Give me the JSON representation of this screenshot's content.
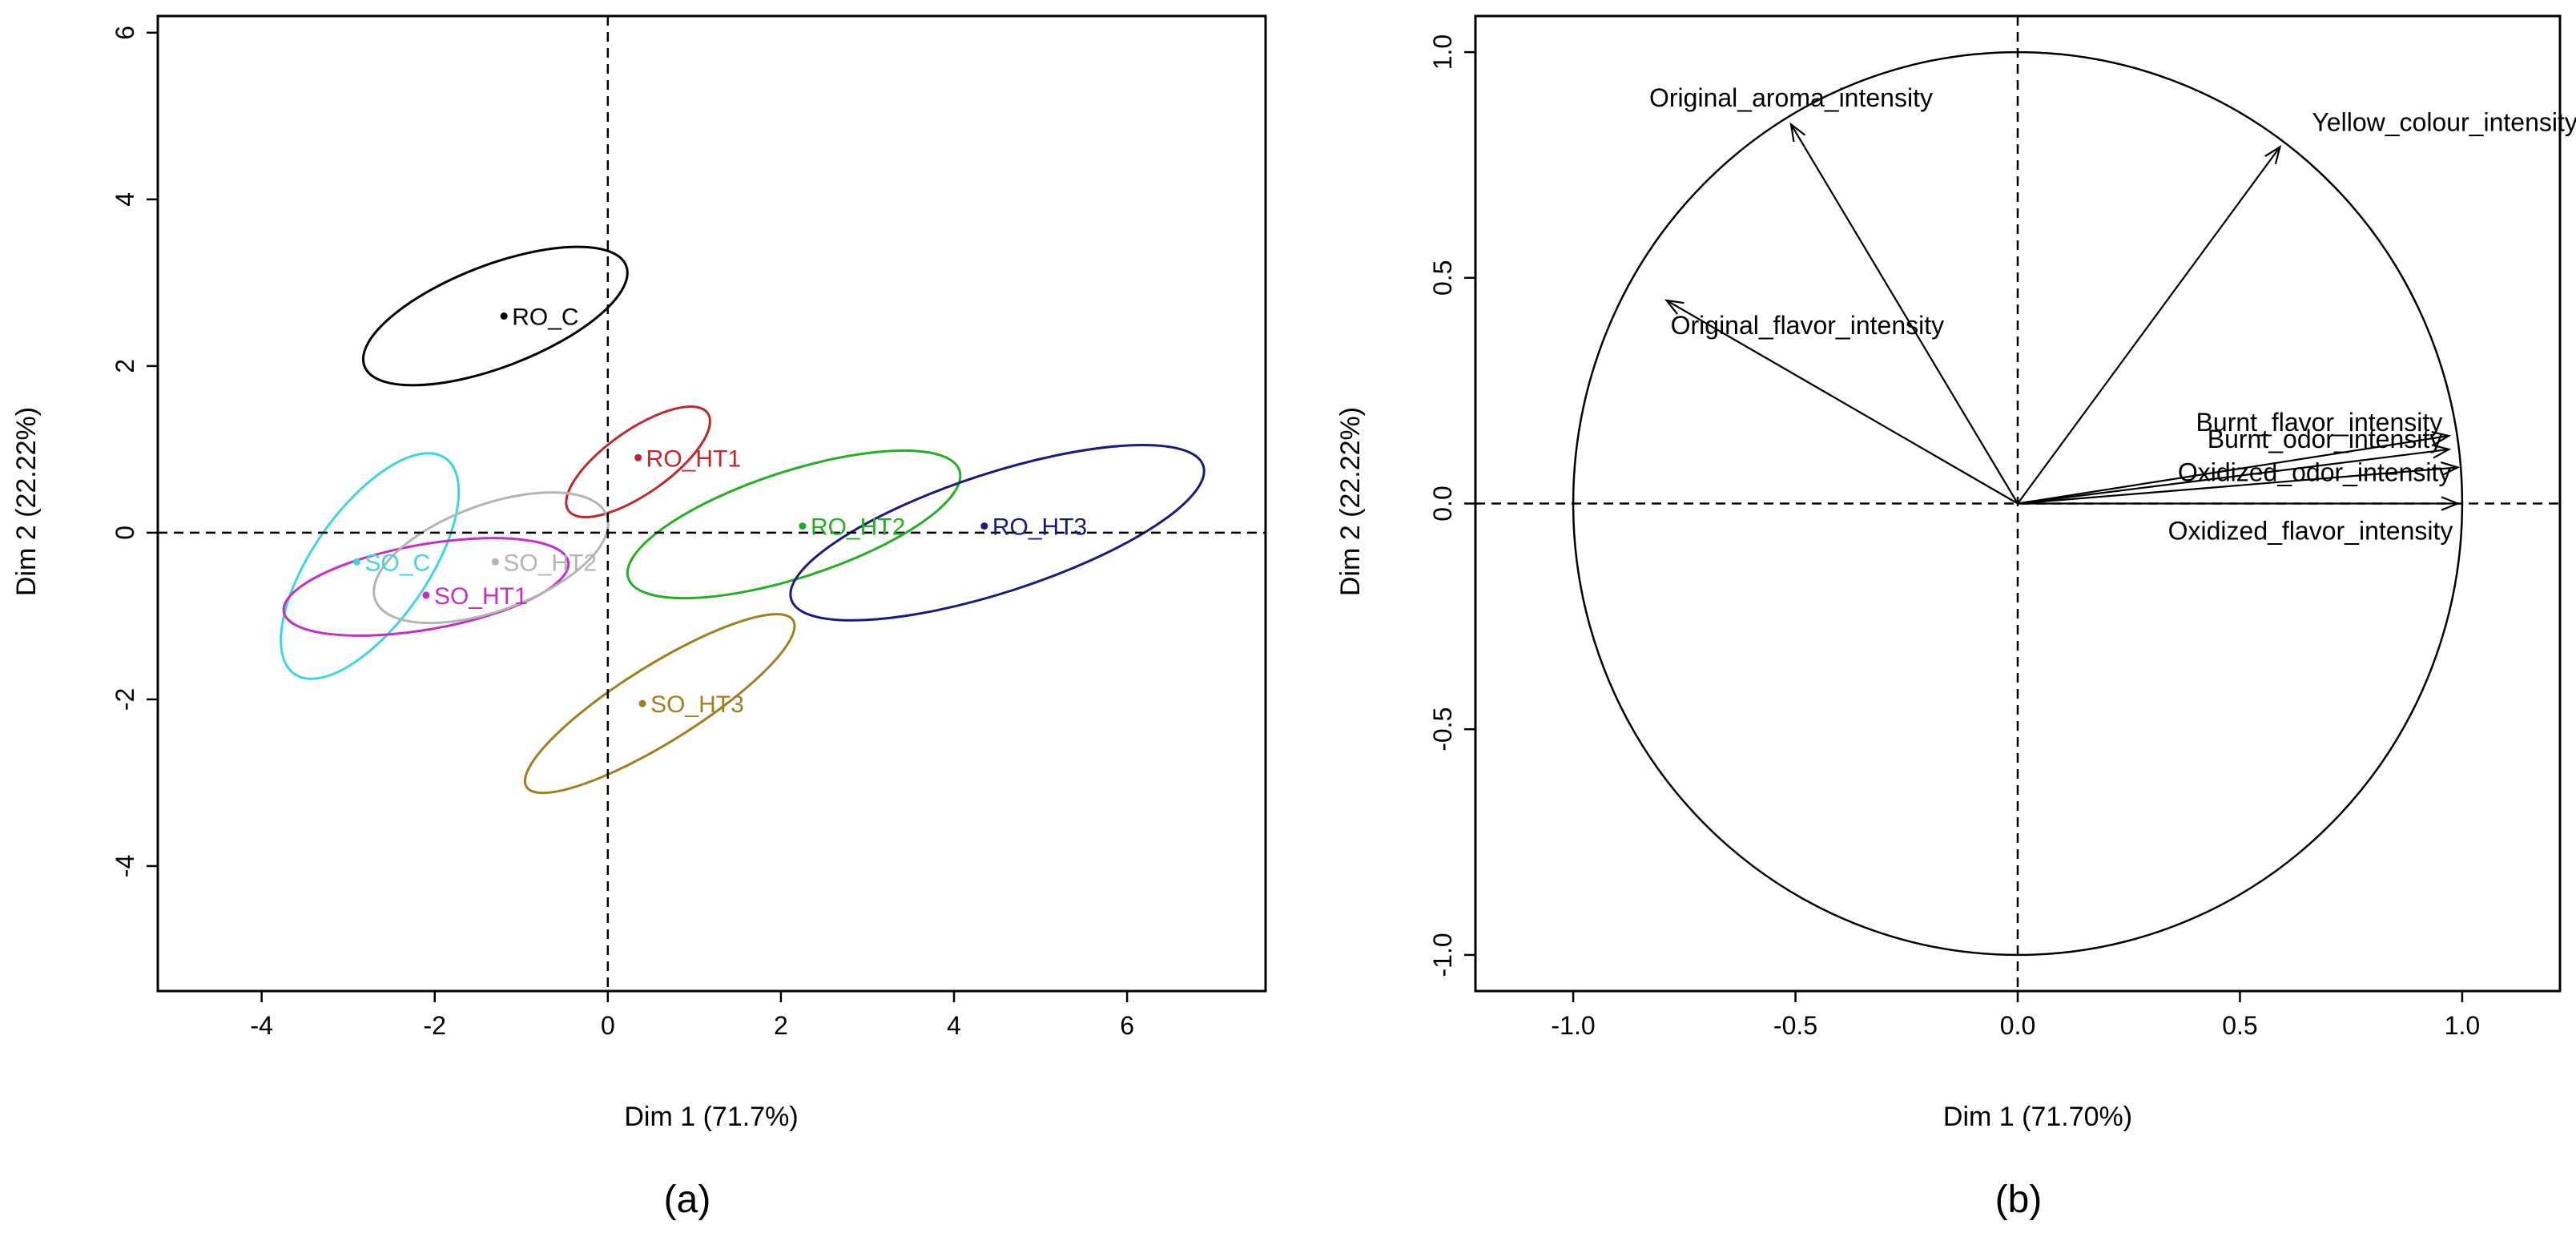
{
  "chart_data": [
    {
      "type": "scatter",
      "panel_label": "(a)",
      "xlabel": "Dim 1 (71.7%)",
      "ylabel": "Dim 2 (22.22%)",
      "xlim": [
        -5.2,
        7.6
      ],
      "ylim": [
        -5.5,
        6.2
      ],
      "xticks": [
        -4,
        -2,
        0,
        2,
        4,
        6
      ],
      "yticks": [
        -4,
        -2,
        0,
        2,
        4,
        6
      ],
      "reference_lines": {
        "x": 0,
        "y": 0
      },
      "points": [
        {
          "name": "RO_C",
          "x": -1.2,
          "y": 2.6,
          "color": "#000000",
          "ellipse": {
            "cx": -1.3,
            "cy": 2.6,
            "rx": 3.3,
            "ry": 1.2,
            "angle": -21
          }
        },
        {
          "name": "RO_HT1",
          "x": 0.35,
          "y": 0.9,
          "color": "#c1272d",
          "ellipse": {
            "cx": 0.35,
            "cy": 0.85,
            "rx": 2.0,
            "ry": 0.75,
            "angle": -35
          }
        },
        {
          "name": "RO_HT2",
          "x": 2.25,
          "y": 0.08,
          "color": "#22b022",
          "ellipse": {
            "cx": 2.15,
            "cy": 0.1,
            "rx": 4.1,
            "ry": 1.25,
            "angle": -18
          }
        },
        {
          "name": "RO_HT3",
          "x": 4.35,
          "y": 0.08,
          "color": "#1a1a80",
          "ellipse": {
            "cx": 4.5,
            "cy": 0.0,
            "rx": 5.1,
            "ry": 1.4,
            "angle": -18
          }
        },
        {
          "name": "SO_C",
          "x": -2.9,
          "y": -0.35,
          "color": "#3dd6de",
          "ellipse": {
            "cx": -2.75,
            "cy": -0.4,
            "rx": 3.1,
            "ry": 1.35,
            "angle": -55
          }
        },
        {
          "name": "SO_HT1",
          "x": -2.1,
          "y": -0.75,
          "color": "#c62dc6",
          "ellipse": {
            "cx": -2.1,
            "cy": -0.65,
            "rx": 3.4,
            "ry": 1.0,
            "angle": -10
          }
        },
        {
          "name": "SO_HT2",
          "x": -1.3,
          "y": -0.35,
          "color": "#b4b4b4",
          "ellipse": {
            "cx": -1.35,
            "cy": -0.3,
            "rx": 2.9,
            "ry": 1.25,
            "angle": -20
          }
        },
        {
          "name": "SO_HT3",
          "x": 0.4,
          "y": -2.05,
          "color": "#a07f1f",
          "ellipse": {
            "cx": 0.6,
            "cy": -2.05,
            "rx": 3.7,
            "ry": 0.9,
            "angle": -32
          }
        }
      ]
    },
    {
      "type": "vector",
      "panel_label": "(b)",
      "xlabel": "Dim 1 (71.70%)",
      "ylabel": "Dim 2 (22.22%)",
      "xlim": [
        -1.22,
        1.22
      ],
      "ylim": [
        -1.08,
        1.08
      ],
      "xticks": [
        -1.0,
        -0.5,
        0.0,
        0.5,
        1.0
      ],
      "yticks": [
        -1.0,
        -0.5,
        0.0,
        0.5,
        1.0
      ],
      "tick_labels": [
        "-1.0",
        "-0.5",
        "0.0",
        "0.5",
        "1.0"
      ],
      "unit_circle": true,
      "reference_lines": {
        "x": 0,
        "y": 0
      },
      "vectors": [
        {
          "name": "Original_aroma_intensity",
          "x": -0.51,
          "y": 0.84
        },
        {
          "name": "Yellow_colour_intensity",
          "x": 0.59,
          "y": 0.79
        },
        {
          "name": "Original_flavor_intensity",
          "x": -0.79,
          "y": 0.45
        },
        {
          "name": "Burnt_flavor_intensity",
          "x": 0.97,
          "y": 0.15
        },
        {
          "name": "Burnt_odor_intensity",
          "x": 0.97,
          "y": 0.12
        },
        {
          "name": "Oxidized_odor_intensity",
          "x": 0.99,
          "y": 0.08
        },
        {
          "name": "Oxidized_flavor_intensity",
          "x": 0.99,
          "y": 0.0
        }
      ]
    }
  ]
}
